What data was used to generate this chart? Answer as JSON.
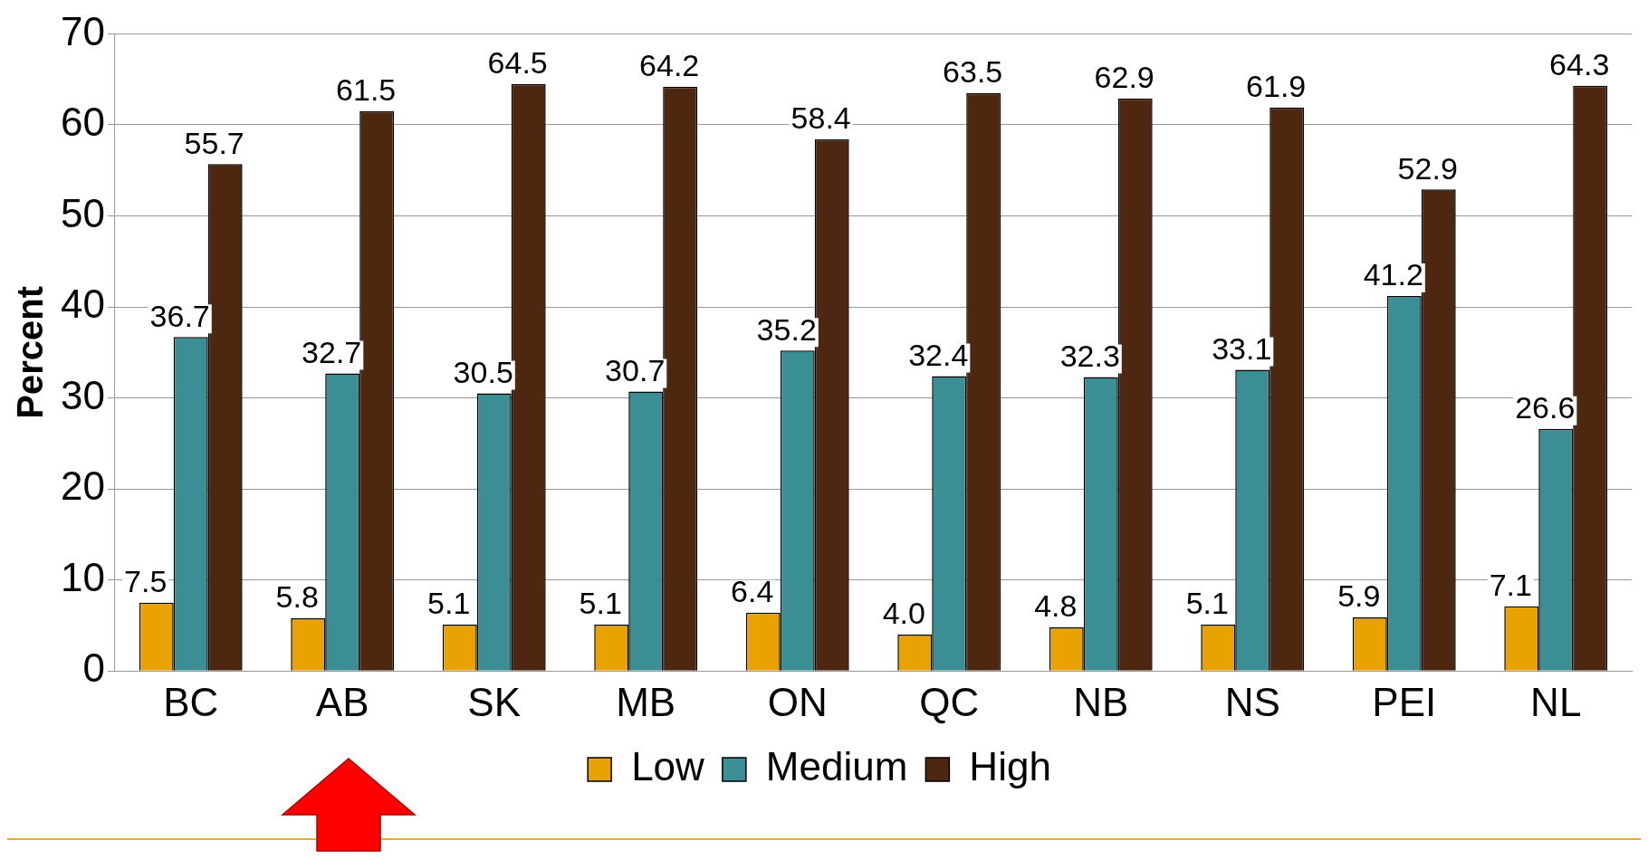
{
  "chart_data": {
    "type": "bar",
    "ylabel": "Percent",
    "categories": [
      "BC",
      "AB",
      "SK",
      "MB",
      "ON",
      "QC",
      "NB",
      "NS",
      "PEI",
      "NL"
    ],
    "series": [
      {
        "name": "Low",
        "color": "#e8a202",
        "values": [
          7.5,
          5.8,
          5.1,
          5.1,
          6.4,
          4.0,
          4.8,
          5.1,
          5.9,
          7.1
        ],
        "value_labels": [
          "7.5",
          "5.8",
          "5.1",
          "5.1",
          "6.4",
          "4.0",
          "4.8",
          "5.1",
          "5.9",
          "7.1"
        ]
      },
      {
        "name": "Medium",
        "color": "#3a8e94",
        "values": [
          36.7,
          32.7,
          30.5,
          30.7,
          35.2,
          32.4,
          32.3,
          33.1,
          41.2,
          26.6
        ],
        "value_labels": [
          "36.7",
          "32.7",
          "30.5",
          "30.7",
          "35.2",
          "32.4",
          "32.3",
          "33.1",
          "41.2",
          "26.6"
        ]
      },
      {
        "name": "High",
        "color": "#4e2710",
        "values": [
          55.7,
          61.5,
          64.5,
          64.2,
          58.4,
          63.5,
          62.9,
          61.9,
          52.9,
          64.3
        ],
        "value_labels": [
          "55.7",
          "61.5",
          "64.5",
          "64.2",
          "58.4",
          "63.5",
          "62.9",
          "61.9",
          "52.9",
          "64.3"
        ]
      }
    ],
    "ylim": [
      0,
      70
    ],
    "yticks": [
      0,
      10,
      20,
      30,
      40,
      50,
      60,
      70
    ],
    "grid": "y",
    "legend": "bottom"
  }
}
